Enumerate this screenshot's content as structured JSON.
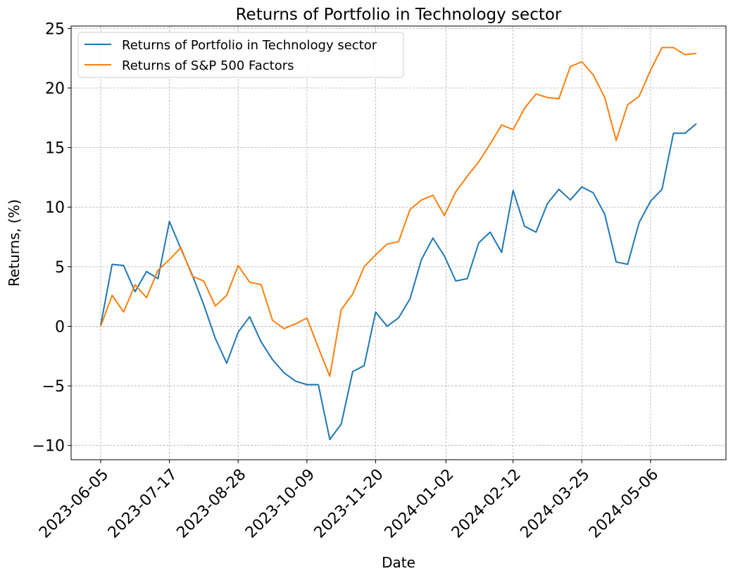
{
  "chart_data": {
    "type": "line",
    "title": "Returns of Portfolio in Technology sector",
    "xlabel": "Date",
    "ylabel": "Returns, (%)",
    "ylim": [
      -11.2,
      25.2
    ],
    "y_ticks": [
      -10,
      -5,
      0,
      5,
      10,
      15,
      20,
      25
    ],
    "y_tick_labels": [
      "−10",
      "−5",
      "0",
      "5",
      "10",
      "15",
      "20",
      "25"
    ],
    "x_ticks": [
      "2023-06-05",
      "2023-07-17",
      "2023-08-28",
      "2023-10-09",
      "2023-11-20",
      "2024-01-02",
      "2024-02-12",
      "2024-03-25",
      "2024-05-06"
    ],
    "grid": true,
    "legend_position": "top-left",
    "x": [
      "2023-06-05",
      "2023-06-12",
      "2023-06-19",
      "2023-06-26",
      "2023-07-03",
      "2023-07-10",
      "2023-07-17",
      "2023-07-24",
      "2023-07-31",
      "2023-08-07",
      "2023-08-14",
      "2023-08-21",
      "2023-08-28",
      "2023-09-04",
      "2023-09-11",
      "2023-09-18",
      "2023-09-25",
      "2023-10-02",
      "2023-10-09",
      "2023-10-16",
      "2023-10-23",
      "2023-10-30",
      "2023-11-06",
      "2023-11-13",
      "2023-11-20",
      "2023-11-27",
      "2023-12-04",
      "2023-12-11",
      "2023-12-18",
      "2023-12-25",
      "2024-01-01",
      "2024-01-08",
      "2024-01-15",
      "2024-01-22",
      "2024-01-29",
      "2024-02-05",
      "2024-02-12",
      "2024-02-19",
      "2024-02-26",
      "2024-03-04",
      "2024-03-11",
      "2024-03-18",
      "2024-03-25",
      "2024-04-01",
      "2024-04-08",
      "2024-04-15",
      "2024-04-22",
      "2024-04-29",
      "2024-05-06",
      "2024-05-13",
      "2024-05-20",
      "2024-05-27",
      "2024-06-03"
    ],
    "series": [
      {
        "name": "Returns of Portfolio in Technology sector",
        "color": "#1f77b4",
        "values": [
          0.1,
          5.2,
          5.1,
          2.9,
          4.6,
          4.0,
          8.8,
          6.5,
          4.3,
          1.8,
          -1.0,
          -3.1,
          -0.5,
          0.8,
          -1.3,
          -2.8,
          -3.9,
          -4.6,
          -4.9,
          -4.9,
          -9.5,
          -8.2,
          -3.8,
          -3.3,
          1.2,
          0.0,
          0.7,
          2.3,
          5.6,
          7.4,
          5.9,
          3.8,
          4.0,
          7.0,
          7.9,
          6.2,
          11.4,
          8.4,
          7.9,
          10.3,
          11.5,
          10.6,
          11.7,
          11.2,
          9.4,
          5.4,
          5.2,
          8.7,
          10.5,
          11.5,
          16.2,
          16.2,
          17.0
        ]
      },
      {
        "name": "Returns of S&P 500 Factors",
        "color": "#ff7f0e",
        "values": [
          0.0,
          2.6,
          1.2,
          3.5,
          2.4,
          4.7,
          5.6,
          6.6,
          4.2,
          3.8,
          1.7,
          2.6,
          5.1,
          3.7,
          3.5,
          0.5,
          -0.2,
          0.2,
          0.7,
          -1.8,
          -4.2,
          1.4,
          2.7,
          5.0,
          6.0,
          6.9,
          7.1,
          9.8,
          10.6,
          11.0,
          9.3,
          11.3,
          12.6,
          13.8,
          15.3,
          16.9,
          16.5,
          18.3,
          19.5,
          19.2,
          19.1,
          21.8,
          22.2,
          21.1,
          19.2,
          15.6,
          18.6,
          19.3,
          21.5,
          23.4,
          23.4,
          22.8,
          22.9
        ]
      }
    ]
  }
}
